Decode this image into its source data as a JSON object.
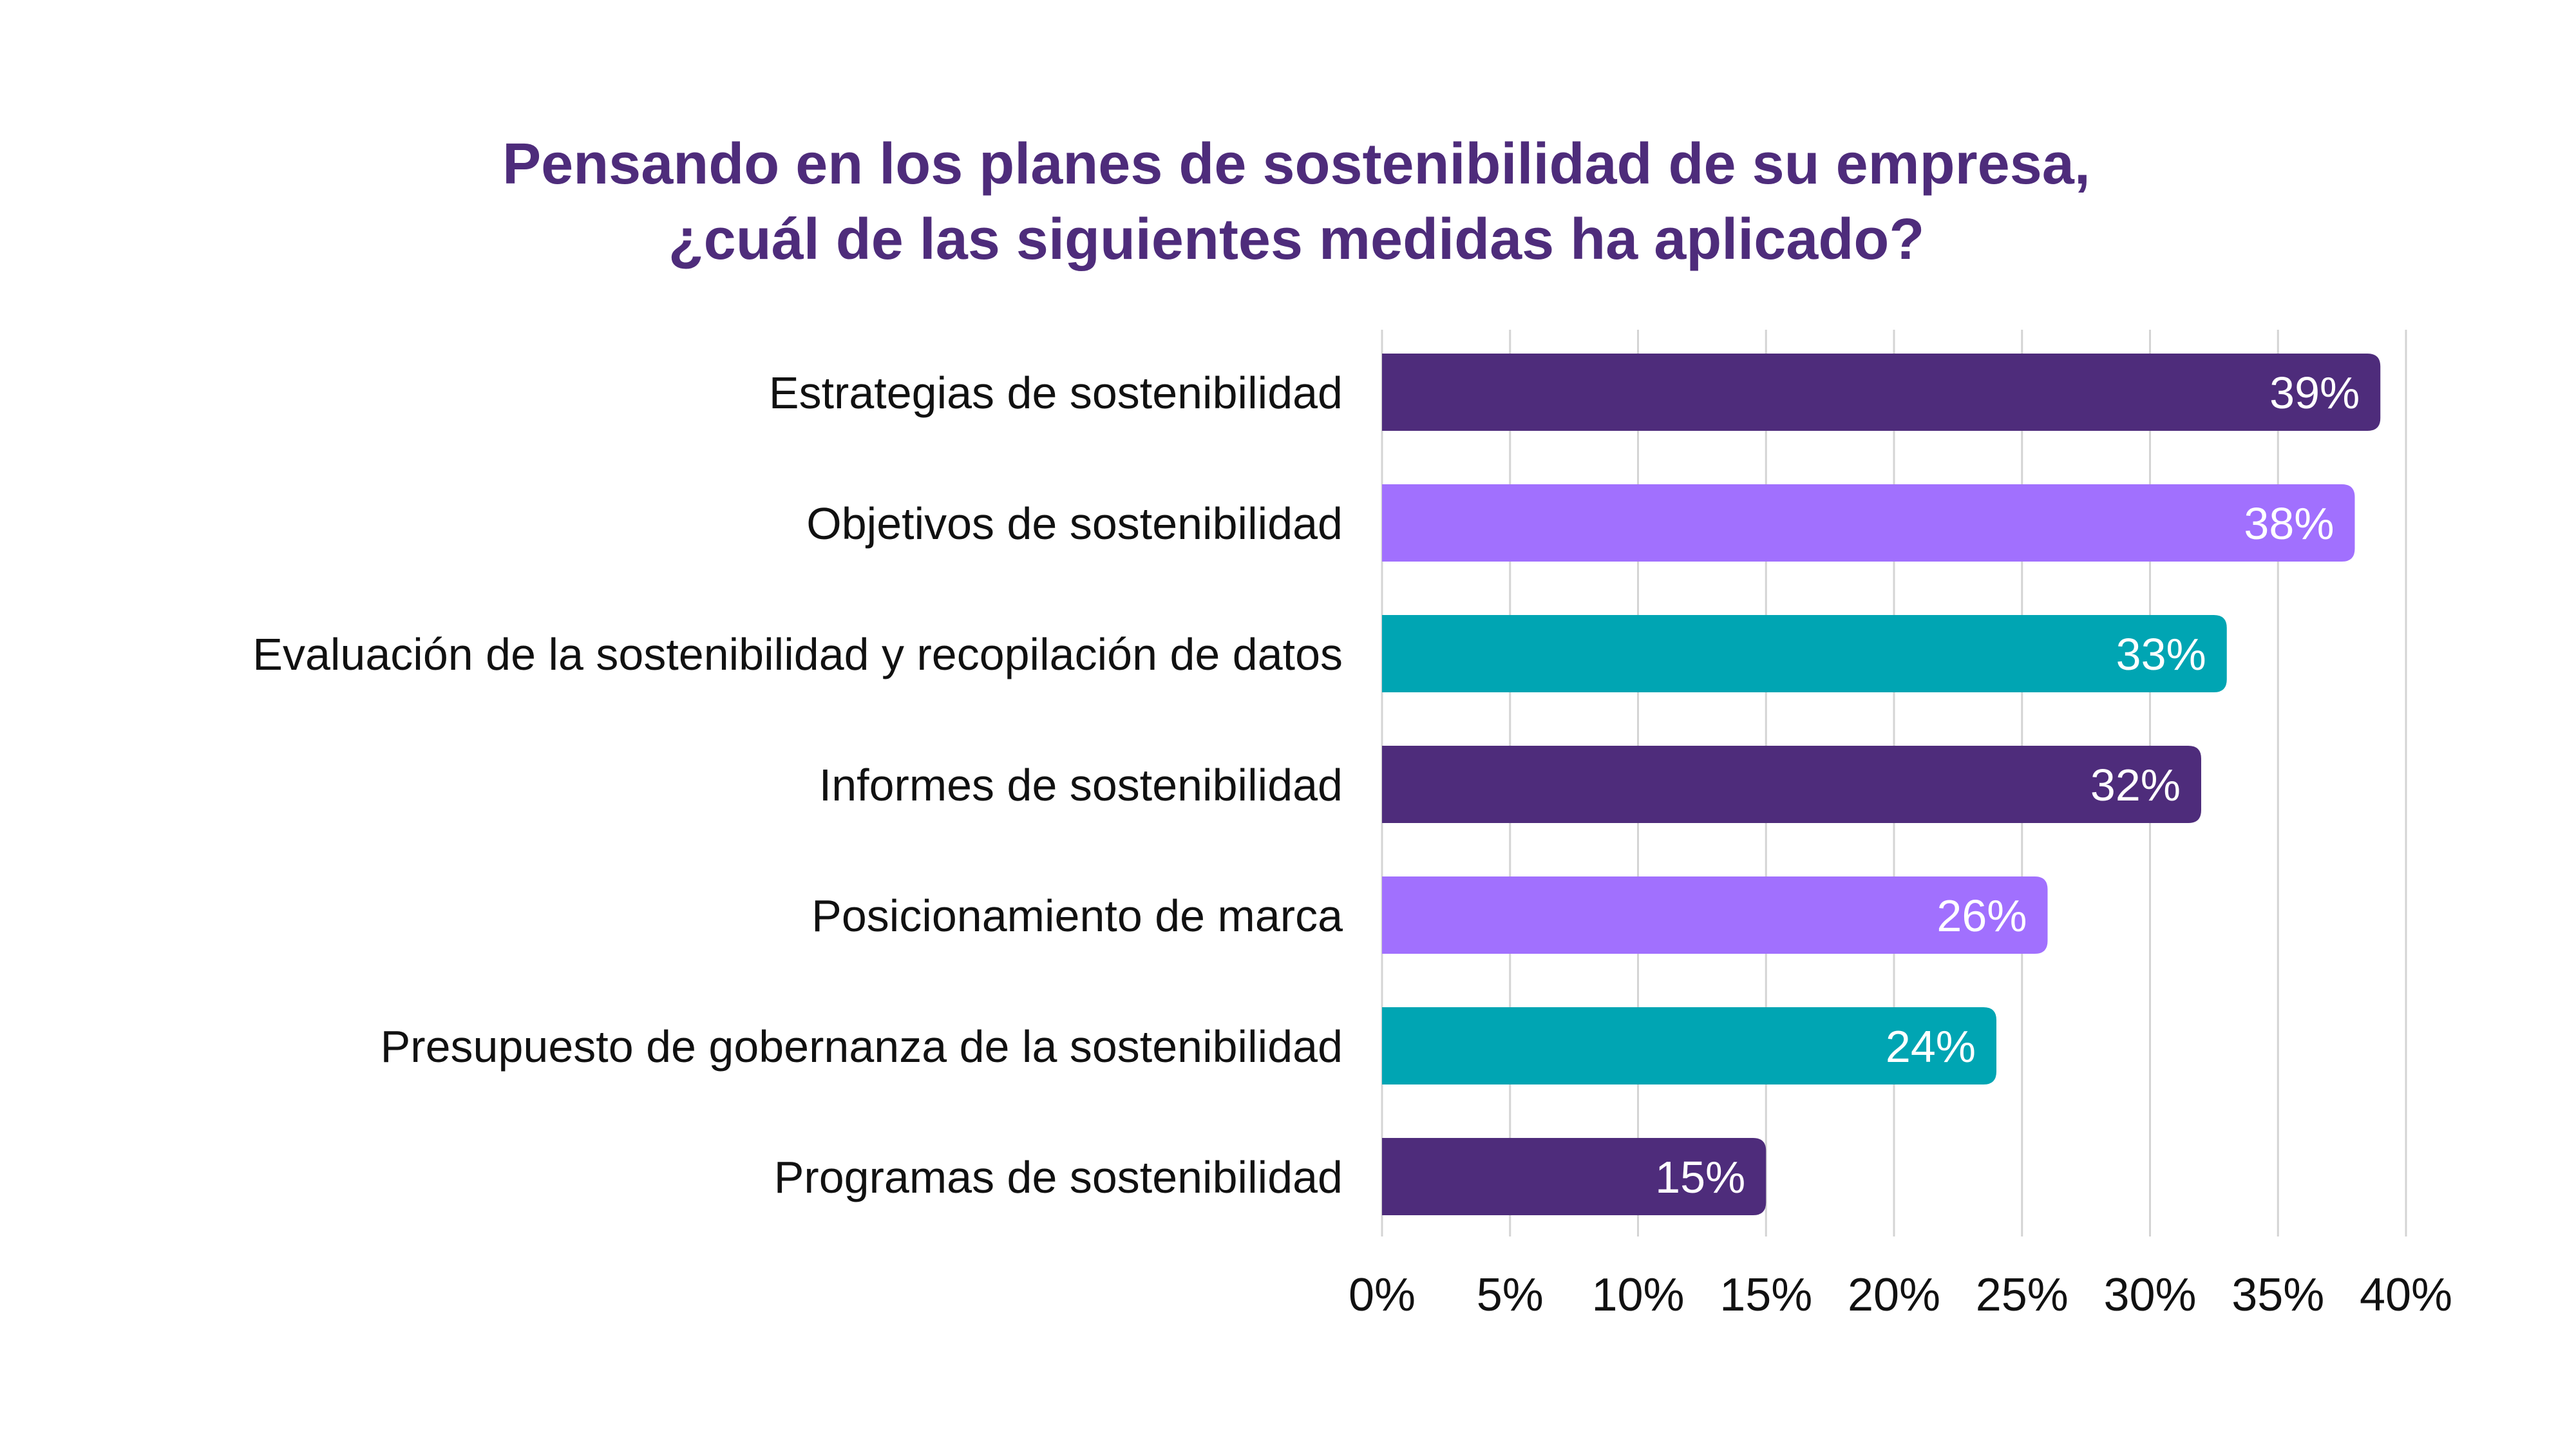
{
  "chart_data": {
    "type": "bar",
    "orientation": "horizontal",
    "title": [
      "Pensando en los planes de sostenibilidad de su empresa,",
      "¿cuál de las siguientes medidas ha aplicado?"
    ],
    "categories": [
      "Estrategias de sostenibilidad",
      "Objetivos de sostenibilidad",
      "Evaluación de la sostenibilidad y recopilación de datos",
      "Informes de sostenibilidad",
      "Posicionamiento de marca",
      "Presupuesto de gobernanza de la sostenibilidad",
      "Programas de sostenibilidad"
    ],
    "values": [
      39,
      38,
      33,
      32,
      26,
      24,
      15
    ],
    "value_labels": [
      "39%",
      "38%",
      "33%",
      "32%",
      "26%",
      "24%",
      "15%"
    ],
    "colors": [
      "#4e2c7b",
      "#a170fe",
      "#00a5b3",
      "#4e2c7b",
      "#a170fe",
      "#00a5b3",
      "#4e2c7b"
    ],
    "xlim": [
      0,
      40
    ],
    "xticks": [
      0,
      5,
      10,
      15,
      20,
      25,
      30,
      35,
      40
    ],
    "xtick_labels": [
      "0%",
      "5%",
      "10%",
      "15%",
      "20%",
      "25%",
      "30%",
      "35%",
      "40%"
    ],
    "xlabel": "",
    "ylabel": "",
    "grid": "vertical"
  }
}
